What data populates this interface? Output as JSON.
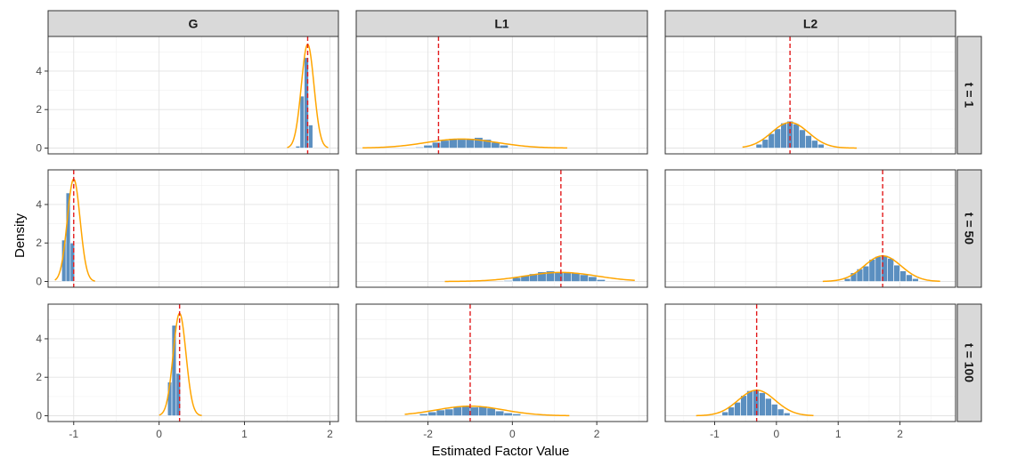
{
  "chart_data": {
    "type": "faceted-histogram",
    "title": "",
    "xlabel": "Estimated Factor Value",
    "ylabel": "Density",
    "ylim": [
      -0.3,
      5.8
    ],
    "yticks": [
      0,
      2,
      4
    ],
    "columns": [
      {
        "label": "G",
        "xlim": [
          -1.3,
          2.1
        ],
        "xticks": [
          -1,
          0,
          1,
          2
        ]
      },
      {
        "label": "L1",
        "xlim": [
          -3.7,
          3.2
        ],
        "xticks": [
          -2,
          0,
          2
        ]
      },
      {
        "label": "L2",
        "xlim": [
          -1.8,
          2.9
        ],
        "xticks": [
          -1,
          0,
          1,
          2
        ]
      }
    ],
    "rows": [
      {
        "label": "t = 1"
      },
      {
        "label": "t = 50"
      },
      {
        "label": "t = 100"
      }
    ],
    "colors": {
      "bar": "#5b8fc0",
      "density": "#ffa500",
      "reference": "#e31a1c"
    },
    "panels": [
      {
        "row": 0,
        "col": 0,
        "ref": 1.74,
        "curve": {
          "mean": 1.74,
          "sd": 0.074,
          "from": 1.5,
          "to": 1.98
        },
        "bars": {
          "start": 1.6,
          "width": 0.05,
          "values": [
            0.1,
            2.7,
            4.7,
            1.2
          ]
        }
      },
      {
        "row": 0,
        "col": 1,
        "ref": -1.75,
        "curve": {
          "mean": -1.2,
          "sd": 0.85,
          "from": -3.55,
          "to": 1.3
        },
        "bars": {
          "start": -2.3,
          "width": 0.2,
          "values": [
            0.05,
            0.15,
            0.3,
            0.4,
            0.5,
            0.45,
            0.5,
            0.55,
            0.45,
            0.3,
            0.15
          ]
        }
      },
      {
        "row": 0,
        "col": 2,
        "ref": 0.22,
        "curve": {
          "mean": 0.22,
          "sd": 0.3,
          "from": -0.55,
          "to": 1.3
        },
        "bars": {
          "start": -0.33,
          "width": 0.1,
          "values": [
            0.2,
            0.45,
            0.75,
            1.0,
            1.3,
            1.4,
            1.25,
            0.95,
            0.65,
            0.4,
            0.2
          ]
        }
      },
      {
        "row": 1,
        "col": 0,
        "ref": -1.0,
        "curve": {
          "mean": -1.0,
          "sd": 0.075,
          "from": -1.22,
          "to": -0.75
        },
        "bars": {
          "start": -1.14,
          "width": 0.05,
          "values": [
            2.15,
            4.6,
            2.0
          ]
        }
      },
      {
        "row": 1,
        "col": 1,
        "ref": 1.15,
        "curve": {
          "mean": 1.15,
          "sd": 0.85,
          "from": -1.6,
          "to": 2.9
        },
        "bars": {
          "start": -0.2,
          "width": 0.2,
          "values": [
            0.05,
            0.2,
            0.3,
            0.4,
            0.5,
            0.55,
            0.5,
            0.5,
            0.45,
            0.35,
            0.25,
            0.1
          ]
        }
      },
      {
        "row": 1,
        "col": 2,
        "ref": 1.72,
        "curve": {
          "mean": 1.72,
          "sd": 0.3,
          "from": 0.75,
          "to": 2.65
        },
        "bars": {
          "start": 1.1,
          "width": 0.1,
          "values": [
            0.15,
            0.45,
            0.65,
            0.8,
            1.15,
            1.3,
            1.35,
            1.2,
            0.85,
            0.55,
            0.35,
            0.15
          ]
        }
      },
      {
        "row": 2,
        "col": 0,
        "ref": 0.24,
        "curve": {
          "mean": 0.24,
          "sd": 0.075,
          "from": 0.0,
          "to": 0.5
        },
        "bars": {
          "start": 0.1,
          "width": 0.05,
          "values": [
            1.75,
            4.7,
            2.2
          ]
        }
      },
      {
        "row": 2,
        "col": 1,
        "ref": -1.0,
        "curve": {
          "mean": -1.0,
          "sd": 0.8,
          "from": -2.55,
          "to": 1.35
        },
        "bars": {
          "start": -2.2,
          "width": 0.2,
          "values": [
            0.1,
            0.2,
            0.3,
            0.35,
            0.45,
            0.5,
            0.45,
            0.5,
            0.4,
            0.25,
            0.15,
            0.1
          ]
        }
      },
      {
        "row": 2,
        "col": 2,
        "ref": -0.32,
        "curve": {
          "mean": -0.32,
          "sd": 0.3,
          "from": -1.3,
          "to": 0.6
        },
        "bars": {
          "start": -0.88,
          "width": 0.1,
          "values": [
            0.2,
            0.45,
            0.7,
            1.05,
            1.3,
            1.35,
            1.2,
            0.9,
            0.6,
            0.35,
            0.15
          ]
        }
      }
    ]
  }
}
